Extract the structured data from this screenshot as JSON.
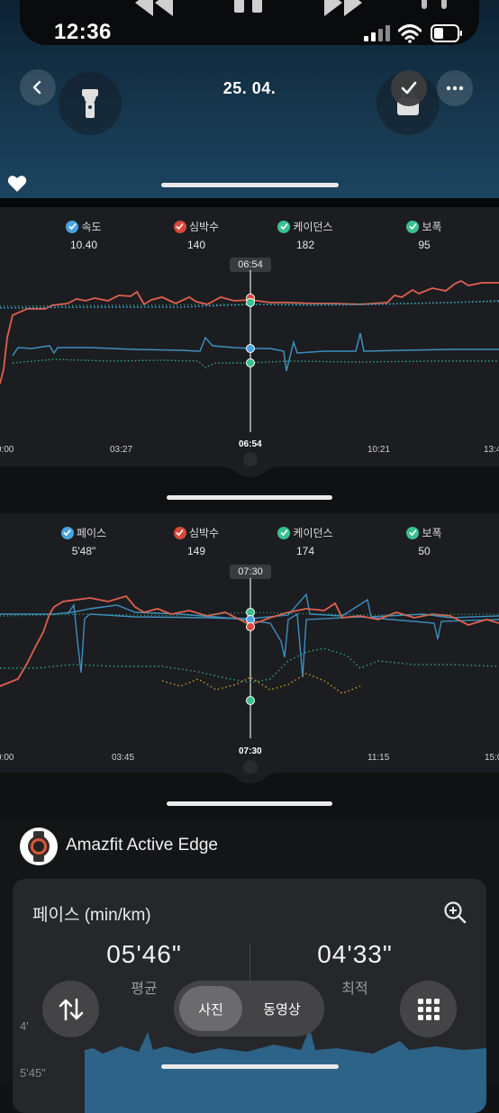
{
  "status_bar": {
    "time": "12:36"
  },
  "header": {
    "date": "25. 04."
  },
  "chart1": {
    "legend": [
      {
        "label": "속도",
        "value": "10.40",
        "color": "#4aa3e0"
      },
      {
        "label": "심박수",
        "value": "140",
        "color": "#d9483b"
      },
      {
        "label": "케이던스",
        "value": "182",
        "color": "#39c08f"
      },
      {
        "label": "보폭",
        "value": "95",
        "color": "#39c08f"
      }
    ],
    "cursor_time": "06:54",
    "ticks": [
      "0:00",
      "03:27",
      "06:54",
      "10:21",
      "13:4"
    ]
  },
  "chart2": {
    "legend": [
      {
        "label": "페이스",
        "value": "5'48\"",
        "color": "#4aa3e0"
      },
      {
        "label": "심박수",
        "value": "149",
        "color": "#d9483b"
      },
      {
        "label": "케이던스",
        "value": "174",
        "color": "#39c08f"
      },
      {
        "label": "보폭",
        "value": "50",
        "color": "#39c08f"
      }
    ],
    "cursor_time": "07:30",
    "ticks": [
      "0:00",
      "03:45",
      "07:30",
      "11:15",
      "15:0"
    ]
  },
  "device": {
    "name": "Amazfit Active Edge"
  },
  "pace_card": {
    "title": "페이스",
    "unit": "(min/km)",
    "average_value": "05'46\"",
    "average_label": "평균",
    "best_value": "04'33\"",
    "best_label": "최적",
    "axis_label_1": "4'",
    "axis_label_2": "5'45\""
  },
  "bottom_bar": {
    "photo_label": "사진",
    "video_label": "동영상"
  }
}
